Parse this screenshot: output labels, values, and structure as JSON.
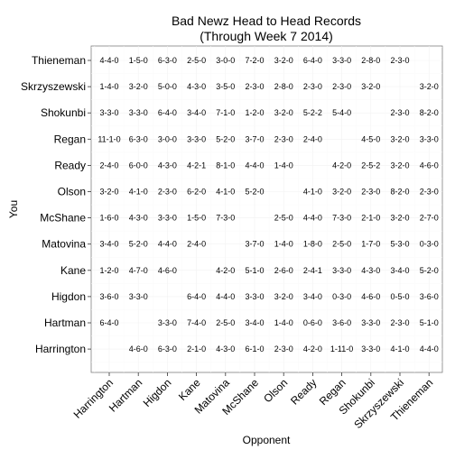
{
  "chart_data": {
    "type": "table",
    "title": [
      "Bad Newz Head to Head Records",
      "(Through Week 7 2014)"
    ],
    "xlabel": "Opponent",
    "ylabel": "You",
    "grid": true,
    "opponents": [
      "Harrington",
      "Hartman",
      "Higdon",
      "Kane",
      "Matovina",
      "McShane",
      "Olson",
      "Ready",
      "Regan",
      "Shokunbi",
      "Skrzyszewski",
      "Thieneman"
    ],
    "you": [
      "Thieneman",
      "Skrzyszewski",
      "Shokunbi",
      "Regan",
      "Ready",
      "Olson",
      "McShane",
      "Matovina",
      "Kane",
      "Higdon",
      "Hartman",
      "Harrington"
    ],
    "records": [
      [
        "4-4-0",
        "1-5-0",
        "6-3-0",
        "2-5-0",
        "3-0-0",
        "7-2-0",
        "3-2-0",
        "6-4-0",
        "3-3-0",
        "2-8-0",
        "2-3-0",
        ""
      ],
      [
        "1-4-0",
        "3-2-0",
        "5-0-0",
        "4-3-0",
        "3-5-0",
        "2-3-0",
        "2-8-0",
        "2-3-0",
        "2-3-0",
        "3-2-0",
        "",
        "3-2-0"
      ],
      [
        "3-3-0",
        "3-3-0",
        "6-4-0",
        "3-4-0",
        "7-1-0",
        "1-2-0",
        "3-2-0",
        "5-2-2",
        "5-4-0",
        "",
        "2-3-0",
        "8-2-0"
      ],
      [
        "11-1-0",
        "6-3-0",
        "3-0-0",
        "3-3-0",
        "5-2-0",
        "3-7-0",
        "2-3-0",
        "2-4-0",
        "",
        "4-5-0",
        "3-2-0",
        "3-3-0"
      ],
      [
        "2-4-0",
        "6-0-0",
        "4-3-0",
        "4-2-1",
        "8-1-0",
        "4-4-0",
        "1-4-0",
        "",
        "4-2-0",
        "2-5-2",
        "3-2-0",
        "4-6-0"
      ],
      [
        "3-2-0",
        "4-1-0",
        "2-3-0",
        "6-2-0",
        "4-1-0",
        "5-2-0",
        "",
        "4-1-0",
        "3-2-0",
        "2-3-0",
        "8-2-0",
        "2-3-0"
      ],
      [
        "1-6-0",
        "4-3-0",
        "3-3-0",
        "1-5-0",
        "7-3-0",
        "",
        "2-5-0",
        "4-4-0",
        "7-3-0",
        "2-1-0",
        "3-2-0",
        "2-7-0"
      ],
      [
        "3-4-0",
        "5-2-0",
        "4-4-0",
        "2-4-0",
        "",
        "3-7-0",
        "1-4-0",
        "1-8-0",
        "2-5-0",
        "1-7-0",
        "5-3-0",
        "0-3-0"
      ],
      [
        "1-2-0",
        "4-7-0",
        "4-6-0",
        "",
        "4-2-0",
        "5-1-0",
        "2-6-0",
        "2-4-1",
        "3-3-0",
        "4-3-0",
        "3-4-0",
        "5-2-0"
      ],
      [
        "3-6-0",
        "3-3-0",
        "",
        "6-4-0",
        "4-4-0",
        "3-3-0",
        "3-2-0",
        "3-4-0",
        "0-3-0",
        "4-6-0",
        "0-5-0",
        "3-6-0"
      ],
      [
        "6-4-0",
        "",
        "3-3-0",
        "7-4-0",
        "2-5-0",
        "3-4-0",
        "1-4-0",
        "0-6-0",
        "3-6-0",
        "3-3-0",
        "2-3-0",
        "5-1-0"
      ],
      [
        "",
        "4-6-0",
        "6-3-0",
        "2-1-0",
        "4-3-0",
        "6-1-0",
        "2-3-0",
        "4-2-0",
        "1-11-0",
        "3-3-0",
        "4-1-0",
        "4-4-0"
      ]
    ]
  }
}
